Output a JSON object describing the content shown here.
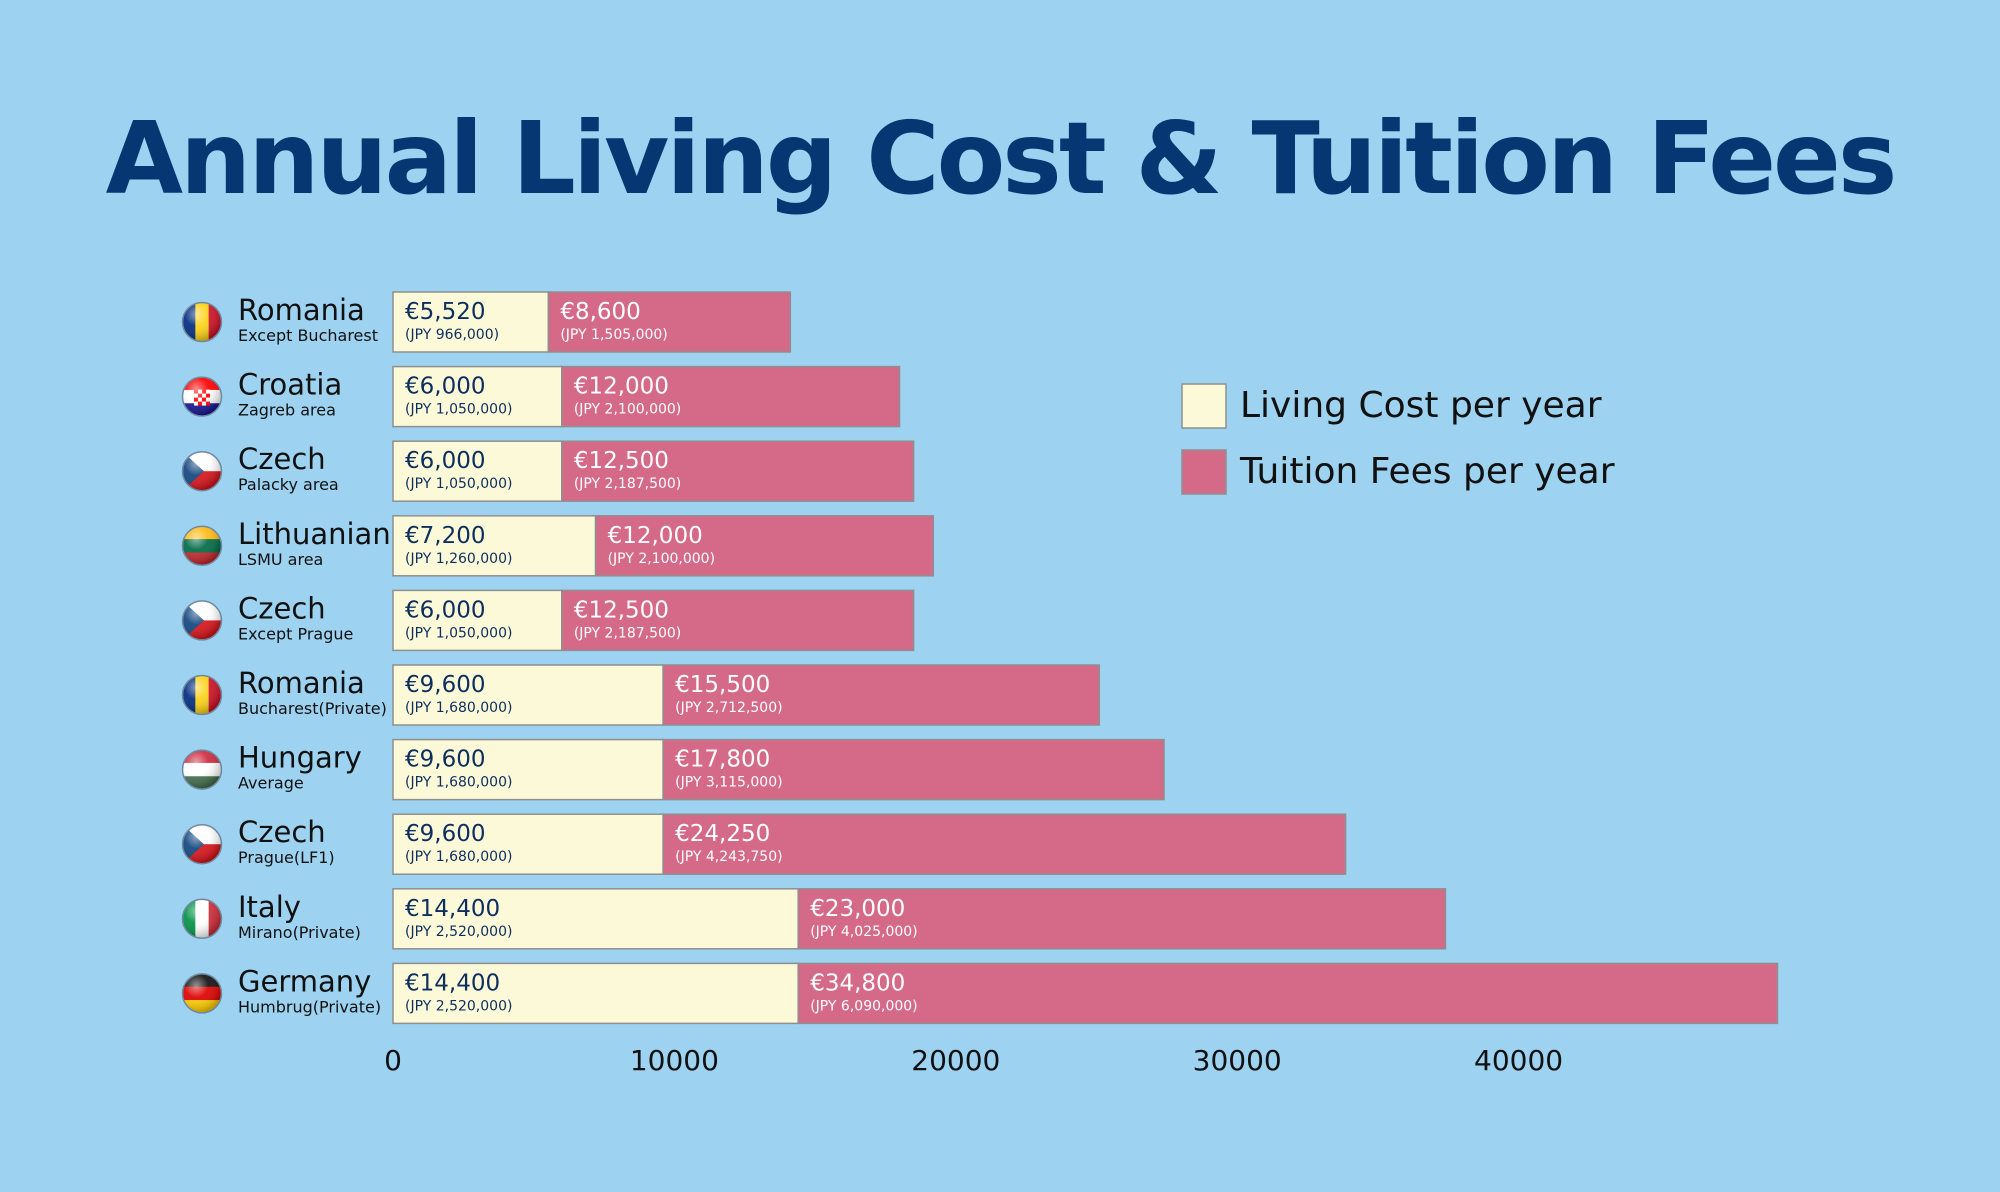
{
  "chart_data": {
    "type": "bar",
    "orientation": "horizontal",
    "stacked": true,
    "title": "Annual Living Cost & Tuition Fees",
    "xlim": [
      0,
      50000
    ],
    "x_ticks": [
      "0",
      "10000",
      "20000",
      "30000",
      "40000"
    ],
    "grid": false,
    "legend_position": "right",
    "colors": {
      "living": "#fcf9d8",
      "tuition": "#d46a88"
    },
    "categories": [
      {
        "name": "Romania",
        "sub": "Except Bucharest",
        "flag": "romania-flag-icon"
      },
      {
        "name": "Croatia",
        "sub": "Zagreb area",
        "flag": "croatia-flag-icon"
      },
      {
        "name": "Czech",
        "sub": "Palacky area",
        "flag": "czech-flag-icon"
      },
      {
        "name": "Lithuanian",
        "sub": "LSMU area",
        "flag": "lithuania-flag-icon"
      },
      {
        "name": "Czech",
        "sub": "Except Prague",
        "flag": "czech-flag-icon"
      },
      {
        "name": "Romania",
        "sub": "Bucharest(Private)",
        "flag": "romania-flag-icon"
      },
      {
        "name": "Hungary",
        "sub": "Average",
        "flag": "hungary-flag-icon"
      },
      {
        "name": "Czech",
        "sub": "Prague(LF1)",
        "flag": "czech-flag-icon"
      },
      {
        "name": "Italy",
        "sub": "Mirano(Private)",
        "flag": "italy-flag-icon"
      },
      {
        "name": "Germany",
        "sub": "Humbrug(Private)",
        "flag": "germany-flag-icon"
      }
    ],
    "series": [
      {
        "name": "Living Cost per year",
        "values": [
          5520,
          6000,
          6000,
          7200,
          6000,
          9600,
          9600,
          9600,
          14400,
          14400
        ],
        "labels": [
          "€5,520",
          "€6,000",
          "€6,000",
          "€7,200",
          "€6,000",
          "€9,600",
          "€9,600",
          "€9,600",
          "€14,400",
          "€14,400"
        ],
        "sublabels": [
          "(JPY 966,000)",
          "(JPY 1,050,000)",
          "(JPY 1,050,000)",
          "(JPY 1,260,000)",
          "(JPY 1,050,000)",
          "(JPY 1,680,000)",
          "(JPY 1,680,000)",
          "(JPY 1,680,000)",
          "(JPY 2,520,000)",
          "(JPY 2,520,000)"
        ]
      },
      {
        "name": "Tuition Fees per year",
        "values": [
          8600,
          12000,
          12500,
          12000,
          12500,
          15500,
          17800,
          24250,
          23000,
          34800
        ],
        "labels": [
          "€8,600",
          "€12,000",
          "€12,500",
          "€12,000",
          "€12,500",
          "€15,500",
          "€17,800",
          "€24,250",
          "€23,000",
          "€34,800"
        ],
        "sublabels": [
          "(JPY 1,505,000)",
          "(JPY 2,100,000)",
          "(JPY 2,187,500)",
          "(JPY 2,100,000)",
          "(JPY 2,187,500)",
          "(JPY 2,712,500)",
          "(JPY 3,115,000)",
          "(JPY 4,243,750)",
          "(JPY 4,025,000)",
          "(JPY 6,090,000)"
        ]
      }
    ]
  }
}
